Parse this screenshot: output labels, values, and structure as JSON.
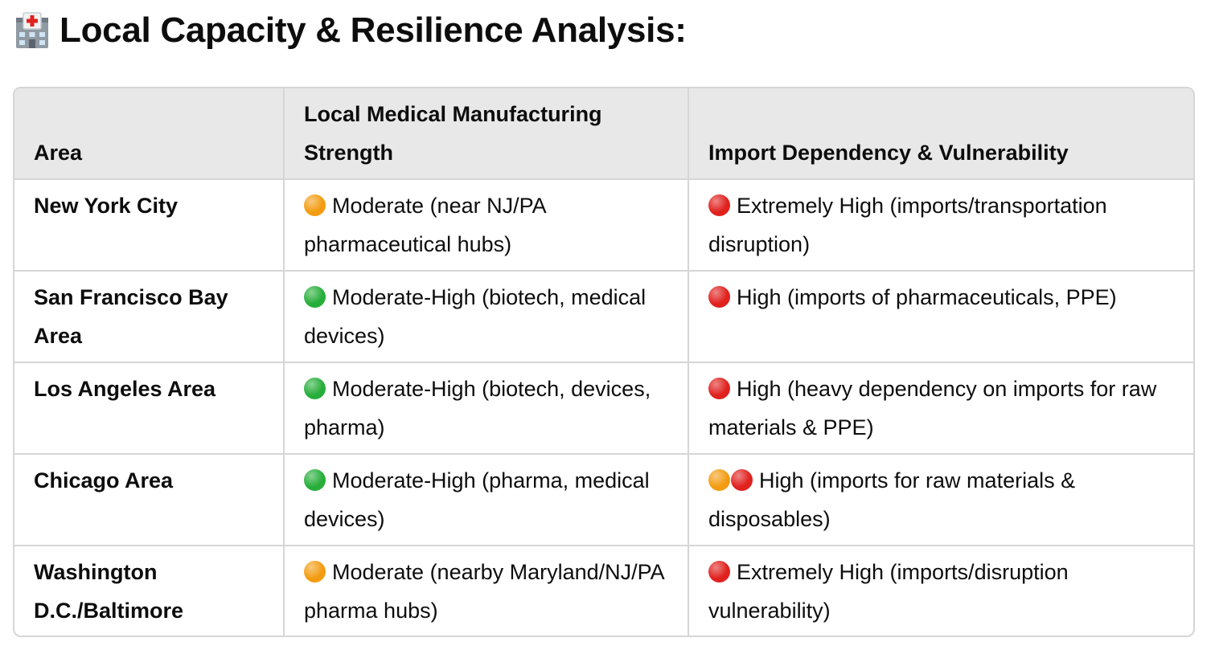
{
  "heading": {
    "icon": "hospital-icon",
    "text": "Local Capacity & Resilience Analysis:"
  },
  "colors": {
    "orange": "#f39c12",
    "green": "#27ae3a",
    "red": "#e0211e"
  },
  "table": {
    "headers": {
      "area": "Area",
      "manufacturing": "Local Medical Manufacturing Strength",
      "imports": "Import Dependency & Vulnerability"
    },
    "rows": [
      {
        "area": "New York City",
        "manufacturing": {
          "indicator": "orange",
          "text": "Moderate (near NJ/PA pharmaceutical hubs)"
        },
        "imports": {
          "indicator": "red",
          "text": "Extremely High (imports/transportation disruption)"
        }
      },
      {
        "area": "San Francisco Bay Area",
        "manufacturing": {
          "indicator": "green",
          "text": "Moderate-High (biotech, medical devices)"
        },
        "imports": {
          "indicator": "red",
          "text": "High (imports of pharmaceuticals, PPE)"
        }
      },
      {
        "area": "Los Angeles Area",
        "manufacturing": {
          "indicator": "green",
          "text": "Moderate-High (biotech, devices, pharma)"
        },
        "imports": {
          "indicator": "red",
          "text": "High (heavy dependency on imports for raw materials & PPE)"
        }
      },
      {
        "area": "Chicago Area",
        "manufacturing": {
          "indicator": "green",
          "text": "Moderate-High (pharma, medical devices)"
        },
        "imports": {
          "indicator": "orange-red",
          "text": "High (imports for raw materials & disposables)"
        }
      },
      {
        "area": "Washington D.C./Baltimore",
        "manufacturing": {
          "indicator": "orange",
          "text": "Moderate (nearby Maryland/NJ/PA pharma hubs)"
        },
        "imports": {
          "indicator": "red",
          "text": "Extremely High (imports/disruption vulnerability)"
        }
      }
    ]
  }
}
